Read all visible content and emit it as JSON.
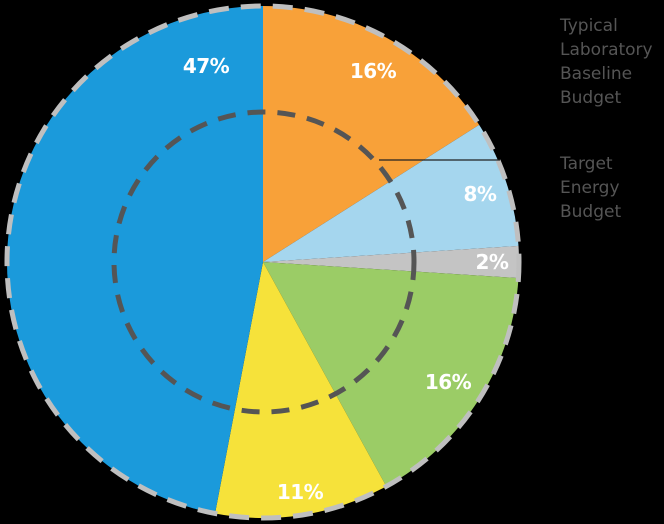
{
  "chart_data": {
    "type": "pie",
    "title": "",
    "start_angle_deg": 0,
    "direction": "clockwise",
    "slices": [
      {
        "label": "16%",
        "value": 16,
        "color": "#F8A139"
      },
      {
        "label": "8%",
        "value": 8,
        "color": "#A5D6EE"
      },
      {
        "label": "2%",
        "value": 2,
        "color": "#C4C4C4"
      },
      {
        "label": "16%",
        "value": 16,
        "color": "#9BCC66"
      },
      {
        "label": "11%",
        "value": 11,
        "color": "#F6E23A"
      },
      {
        "label": "47%",
        "value": 47,
        "color": "#1B9ADB"
      }
    ],
    "outer_ring": {
      "style": "dashed",
      "color": "#BFBFBF",
      "represents": "Typical Laboratory Baseline Budget"
    },
    "inner_ring": {
      "style": "dashed",
      "color": "#555555",
      "represents": "Target Energy Budget"
    },
    "annotations": [
      {
        "text": "Typical Laboratory Baseline Budget",
        "target": "outer dashed circle"
      },
      {
        "text": "Target Energy Budget",
        "target": "inner dashed circle",
        "leader_line": true
      }
    ]
  },
  "labels": {
    "s0": "16%",
    "s1": "8%",
    "s2": "2%",
    "s3": "16%",
    "s4": "11%",
    "s5": "47%"
  },
  "legend": {
    "baseline": [
      "Typical",
      "Laboratory",
      "Baseline",
      "Budget"
    ],
    "target": [
      "Target",
      "Energy",
      "Budget"
    ]
  }
}
